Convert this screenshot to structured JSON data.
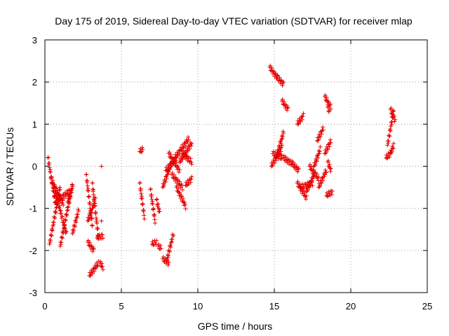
{
  "chart_data": {
    "type": "scatter",
    "title": "Day 175 of 2019, Sidereal Day-to-day VTEC variation (SDTVAR) for receiver mlap",
    "xlabel": "GPS time / hours",
    "ylabel": "SDTVAR / TECUs",
    "xlim": [
      0,
      25
    ],
    "ylim": [
      -3,
      3
    ],
    "xticks": [
      "0",
      "5",
      "10",
      "15",
      "20",
      "25"
    ],
    "yticks": [
      "-3",
      "-2",
      "-1",
      "0",
      "1",
      "2",
      "3"
    ],
    "grid": true,
    "marker": "plus",
    "color": "#e60000",
    "series": [
      {
        "name": "SDTVAR",
        "segments": [
          {
            "x": [
              0.2,
              0.7
            ],
            "y": [
              0.2,
              -0.9
            ]
          },
          {
            "x": [
              0.3,
              1.0
            ],
            "y": [
              -1.85,
              -0.5
            ]
          },
          {
            "x": [
              0.4,
              1.2
            ],
            "y": [
              -0.3,
              -0.9
            ]
          },
          {
            "x": [
              0.6,
              1.4
            ],
            "y": [
              -0.5,
              -1.6
            ]
          },
          {
            "x": [
              0.9,
              1.6
            ],
            "y": [
              -0.8,
              -0.6
            ]
          },
          {
            "x": [
              1.0,
              1.8
            ],
            "y": [
              -1.9,
              -0.45
            ]
          },
          {
            "x": [
              1.5,
              1.8
            ],
            "y": [
              -0.85,
              -0.5
            ]
          },
          {
            "x": [
              1.8,
              2.2
            ],
            "y": [
              -1.6,
              -1.05
            ]
          },
          {
            "x": [
              2.7,
              3.1
            ],
            "y": [
              -0.2,
              -1.4
            ]
          },
          {
            "x": [
              2.8,
              3.3
            ],
            "y": [
              -1.3,
              -0.8
            ]
          },
          {
            "x": [
              2.8,
              3.2
            ],
            "y": [
              -1.8,
              -2.0
            ]
          },
          {
            "x": [
              2.9,
              3.5
            ],
            "y": [
              -2.6,
              -2.3
            ]
          },
          {
            "x": [
              3.1,
              3.5
            ],
            "y": [
              -0.4,
              -1.7
            ]
          },
          {
            "x": [
              3.4,
              3.8
            ],
            "y": [
              -1.7,
              -1.65
            ]
          },
          {
            "x": [
              3.6,
              3.8
            ],
            "y": [
              -2.3,
              -2.4
            ]
          },
          {
            "x": [
              3.7
            ],
            "y": [
              -1.3
            ]
          },
          {
            "x": [
              3.7
            ],
            "y": [
              0.0
            ]
          },
          {
            "x": [
              6.2,
              6.4
            ],
            "y": [
              0.35,
              0.4
            ]
          },
          {
            "x": [
              6.2,
              6.5
            ],
            "y": [
              -0.4,
              -1.2
            ]
          },
          {
            "x": [
              6.9,
              7.2
            ],
            "y": [
              -0.55,
              -1.3
            ]
          },
          {
            "x": [
              7.0,
              7.3
            ],
            "y": [
              -1.85,
              -1.8
            ]
          },
          {
            "x": [
              7.4,
              7.6
            ],
            "y": [
              -1.9,
              -1.95
            ]
          },
          {
            "x": [
              7.3,
              7.5
            ],
            "y": [
              -0.8,
              -1.1
            ]
          },
          {
            "x": [
              7.7,
              8.1
            ],
            "y": [
              -2.2,
              -2.3
            ]
          },
          {
            "x": [
              8.0,
              8.4
            ],
            "y": [
              -2.2,
              -1.6
            ]
          },
          {
            "x": [
              7.7,
              8.3
            ],
            "y": [
              -0.5,
              0.1
            ]
          },
          {
            "x": [
              7.9,
              8.6
            ],
            "y": [
              -0.1,
              0.2
            ]
          },
          {
            "x": [
              8.1,
              8.8
            ],
            "y": [
              0.3,
              -0.1
            ]
          },
          {
            "x": [
              8.3,
              9.0
            ],
            "y": [
              -0.2,
              -0.5
            ]
          },
          {
            "x": [
              8.6,
              9.2
            ],
            "y": [
              -0.5,
              -0.95
            ]
          },
          {
            "x": [
              8.5,
              9.4
            ],
            "y": [
              0.2,
              0.65
            ]
          },
          {
            "x": [
              8.8,
              9.6
            ],
            "y": [
              0.1,
              0.55
            ]
          },
          {
            "x": [
              9.0,
              9.6
            ],
            "y": [
              0.3,
              0.1
            ]
          },
          {
            "x": [
              9.2,
              9.6
            ],
            "y": [
              -0.45,
              -0.3
            ]
          },
          {
            "x": [
              14.7,
              15.2
            ],
            "y": [
              2.35,
              2.1
            ]
          },
          {
            "x": [
              15.2,
              15.6
            ],
            "y": [
              2.1,
              1.95
            ]
          },
          {
            "x": [
              15.5,
              15.9
            ],
            "y": [
              1.55,
              1.35
            ]
          },
          {
            "x": [
              14.8,
              15.5
            ],
            "y": [
              0.0,
              0.45
            ]
          },
          {
            "x": [
              14.9,
              15.5
            ],
            "y": [
              0.3,
              0.2
            ]
          },
          {
            "x": [
              15.2,
              15.6
            ],
            "y": [
              0.3,
              0.8
            ]
          },
          {
            "x": [
              15.6,
              16.2
            ],
            "y": [
              0.2,
              0.05
            ]
          },
          {
            "x": [
              16.2,
              16.6
            ],
            "y": [
              0.05,
              -0.1
            ]
          },
          {
            "x": [
              16.5,
              16.9
            ],
            "y": [
              1.0,
              1.2
            ]
          },
          {
            "x": [
              16.5,
              17.1
            ],
            "y": [
              -0.4,
              -0.75
            ]
          },
          {
            "x": [
              16.7,
              17.5
            ],
            "y": [
              -0.5,
              -0.4
            ]
          },
          {
            "x": [
              17.1,
              17.6
            ],
            "y": [
              -0.6,
              -0.2
            ]
          },
          {
            "x": [
              17.3,
              17.9
            ],
            "y": [
              0.0,
              -0.3
            ]
          },
          {
            "x": [
              17.6,
              18.0
            ],
            "y": [
              0.0,
              0.4
            ]
          },
          {
            "x": [
              17.8,
              18.2
            ],
            "y": [
              0.6,
              0.9
            ]
          },
          {
            "x": [
              17.9,
              18.4
            ],
            "y": [
              -0.5,
              -0.1
            ]
          },
          {
            "x": [
              18.3,
              18.7
            ],
            "y": [
              1.65,
              1.4
            ]
          },
          {
            "x": [
              18.5,
              18.6
            ],
            "y": [
              1.4,
              1.3
            ]
          },
          {
            "x": [
              18.3,
              18.7
            ],
            "y": [
              0.3,
              0.6
            ]
          },
          {
            "x": [
              18.5,
              18.7
            ],
            "y": [
              0.1,
              -0.1
            ]
          },
          {
            "x": [
              18.4,
              18.8
            ],
            "y": [
              -0.7,
              -0.6
            ]
          },
          {
            "x": [
              22.3,
              22.6
            ],
            "y": [
              0.2,
              0.3
            ]
          },
          {
            "x": [
              22.4,
              22.8
            ],
            "y": [
              0.5,
              1.3
            ]
          },
          {
            "x": [
              22.6,
              22.9
            ],
            "y": [
              1.35,
              1.1
            ]
          },
          {
            "x": [
              22.6,
              22.8
            ],
            "y": [
              0.3,
              0.5
            ]
          }
        ]
      }
    ]
  }
}
